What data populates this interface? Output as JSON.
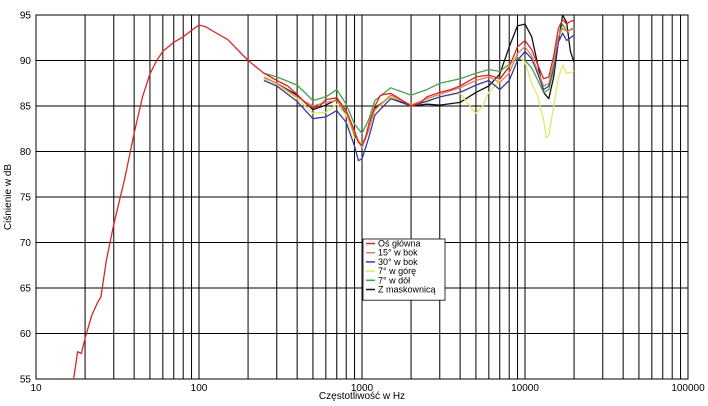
{
  "chart_data": {
    "type": "line",
    "xlabel": "Częstotliwość w Hz",
    "ylabel": "Ciśnienie w dB",
    "xscale": "log",
    "xlim": [
      10,
      100000
    ],
    "ylim": [
      55,
      95
    ],
    "x_ticks": [
      10,
      100,
      1000,
      10000,
      100000
    ],
    "x_tick_labels": [
      "10",
      "100",
      "1000",
      "10000",
      "100000"
    ],
    "y_ticks": [
      55,
      60,
      65,
      70,
      75,
      80,
      85,
      90,
      95
    ],
    "y_tick_labels": [
      "55",
      "60",
      "65",
      "70",
      "75",
      "80",
      "85",
      "90",
      "95"
    ],
    "grid": "on",
    "legend_position": "center-bottom",
    "series": [
      {
        "name": "Oś główna",
        "color": "#d62828",
        "points": [
          [
            17,
            55
          ],
          [
            18,
            58
          ],
          [
            19,
            57.8
          ],
          [
            20,
            59.5
          ],
          [
            22,
            62
          ],
          [
            24,
            63.5
          ],
          [
            25,
            64
          ],
          [
            27,
            68
          ],
          [
            30,
            72
          ],
          [
            35,
            77
          ],
          [
            40,
            82
          ],
          [
            45,
            86
          ],
          [
            50,
            88.5
          ],
          [
            55,
            90
          ],
          [
            60,
            91
          ],
          [
            70,
            92
          ],
          [
            80,
            92.6
          ],
          [
            90,
            93.3
          ],
          [
            100,
            93.9
          ],
          [
            110,
            93.7
          ],
          [
            120,
            93.3
          ],
          [
            150,
            92.3
          ],
          [
            200,
            90
          ],
          [
            250,
            88.6
          ],
          [
            300,
            87.8
          ],
          [
            350,
            87.2
          ],
          [
            400,
            86.3
          ],
          [
            450,
            85.3
          ],
          [
            500,
            84.8
          ],
          [
            550,
            85
          ],
          [
            600,
            85.7
          ],
          [
            700,
            85.9
          ],
          [
            800,
            84.5
          ],
          [
            900,
            82.3
          ],
          [
            950,
            81
          ],
          [
            1000,
            80.7
          ],
          [
            1050,
            81.5
          ],
          [
            1100,
            83
          ],
          [
            1200,
            85
          ],
          [
            1300,
            86.2
          ],
          [
            1500,
            86.4
          ],
          [
            1700,
            85.8
          ],
          [
            2000,
            85
          ],
          [
            2300,
            85.4
          ],
          [
            2500,
            86
          ],
          [
            3000,
            86.5
          ],
          [
            3500,
            86.8
          ],
          [
            4000,
            87.2
          ],
          [
            5000,
            88.2
          ],
          [
            6000,
            88.4
          ],
          [
            7000,
            88
          ],
          [
            8000,
            89.3
          ],
          [
            9000,
            91.5
          ],
          [
            10000,
            92.2
          ],
          [
            11000,
            91.2
          ],
          [
            12000,
            89.5
          ],
          [
            13000,
            88
          ],
          [
            14000,
            88.2
          ],
          [
            15000,
            90.5
          ],
          [
            16000,
            93.5
          ],
          [
            17000,
            94.5
          ],
          [
            18000,
            94
          ],
          [
            19000,
            94.3
          ],
          [
            20000,
            94.4
          ]
        ]
      },
      {
        "name": "15° w bok",
        "color": "#e0805a",
        "points": [
          [
            250,
            88.2
          ],
          [
            300,
            87.5
          ],
          [
            400,
            86
          ],
          [
            500,
            85
          ],
          [
            600,
            85.4
          ],
          [
            700,
            85.6
          ],
          [
            800,
            84.3
          ],
          [
            900,
            82
          ],
          [
            1000,
            80.5
          ],
          [
            1100,
            82.5
          ],
          [
            1200,
            84.6
          ],
          [
            1500,
            86.2
          ],
          [
            2000,
            85.1
          ],
          [
            2500,
            85.8
          ],
          [
            3000,
            86.3
          ],
          [
            4000,
            87
          ],
          [
            5000,
            87.8
          ],
          [
            6000,
            88.2
          ],
          [
            7000,
            87.6
          ],
          [
            8000,
            88.6
          ],
          [
            9000,
            90.8
          ],
          [
            10000,
            91.5
          ],
          [
            11000,
            90.5
          ],
          [
            12000,
            88.8
          ],
          [
            13000,
            87.2
          ],
          [
            14000,
            87.5
          ],
          [
            15000,
            89.8
          ],
          [
            16000,
            92.6
          ],
          [
            17000,
            93.5
          ],
          [
            18000,
            93.2
          ],
          [
            20000,
            93.5
          ]
        ]
      },
      {
        "name": "30° w bok",
        "color": "#3a3aa0",
        "points": [
          [
            250,
            87.8
          ],
          [
            300,
            87.2
          ],
          [
            400,
            85.5
          ],
          [
            500,
            83.6
          ],
          [
            600,
            83.8
          ],
          [
            700,
            84.5
          ],
          [
            800,
            83.2
          ],
          [
            900,
            80.6
          ],
          [
            950,
            79
          ],
          [
            1000,
            79.2
          ],
          [
            1100,
            81.5
          ],
          [
            1200,
            84
          ],
          [
            1500,
            85.8
          ],
          [
            2000,
            85
          ],
          [
            2500,
            85.5
          ],
          [
            3000,
            86
          ],
          [
            4000,
            86.5
          ],
          [
            5000,
            87.3
          ],
          [
            6000,
            87.8
          ],
          [
            7000,
            86.8
          ],
          [
            8000,
            87.8
          ],
          [
            9000,
            90
          ],
          [
            10000,
            91
          ],
          [
            11000,
            90.2
          ],
          [
            12000,
            88.5
          ],
          [
            13000,
            86.8
          ],
          [
            14000,
            87.2
          ],
          [
            15000,
            89.5
          ],
          [
            16000,
            92
          ],
          [
            17000,
            93
          ],
          [
            18000,
            92.2
          ],
          [
            19000,
            92.5
          ],
          [
            20000,
            92.8
          ]
        ]
      },
      {
        "name": "7° w górę",
        "color": "#e5e56a",
        "points": [
          [
            250,
            88
          ],
          [
            300,
            87.4
          ],
          [
            400,
            85.8
          ],
          [
            500,
            84.2
          ],
          [
            600,
            84.3
          ],
          [
            700,
            85.2
          ],
          [
            800,
            84
          ],
          [
            900,
            81.5
          ],
          [
            1000,
            80.8
          ],
          [
            1100,
            82.5
          ],
          [
            1200,
            84.5
          ],
          [
            1500,
            86
          ],
          [
            2000,
            85.2
          ],
          [
            2500,
            85.6
          ],
          [
            3000,
            86
          ],
          [
            3500,
            86.2
          ],
          [
            4000,
            86.4
          ],
          [
            4500,
            85.2
          ],
          [
            5000,
            84.2
          ],
          [
            5500,
            85
          ],
          [
            6000,
            86.5
          ],
          [
            7000,
            87.8
          ],
          [
            8000,
            89.5
          ],
          [
            9000,
            90.5
          ],
          [
            10000,
            89.8
          ],
          [
            11000,
            87.5
          ],
          [
            12000,
            86
          ],
          [
            13000,
            83.5
          ],
          [
            13500,
            81.5
          ],
          [
            14000,
            81.8
          ],
          [
            15000,
            85
          ],
          [
            16000,
            88
          ],
          [
            17000,
            89.5
          ],
          [
            18000,
            88.6
          ],
          [
            20000,
            88.8
          ]
        ]
      },
      {
        "name": "7° w dół",
        "color": "#4aa04a",
        "points": [
          [
            250,
            88.6
          ],
          [
            300,
            88.2
          ],
          [
            400,
            87.3
          ],
          [
            500,
            85.6
          ],
          [
            600,
            86
          ],
          [
            700,
            86.8
          ],
          [
            800,
            85.2
          ],
          [
            900,
            83
          ],
          [
            1000,
            82
          ],
          [
            1100,
            83.5
          ],
          [
            1200,
            85.6
          ],
          [
            1500,
            87
          ],
          [
            2000,
            86.2
          ],
          [
            2500,
            86.8
          ],
          [
            3000,
            87.5
          ],
          [
            4000,
            88
          ],
          [
            5000,
            88.6
          ],
          [
            6000,
            89
          ],
          [
            7000,
            88.8
          ],
          [
            8000,
            89.6
          ],
          [
            9000,
            90.2
          ],
          [
            10000,
            90
          ],
          [
            11000,
            89.2
          ],
          [
            12000,
            87.8
          ],
          [
            13000,
            86.5
          ],
          [
            14000,
            86.8
          ],
          [
            15000,
            89
          ],
          [
            16000,
            92.5
          ],
          [
            17000,
            94
          ],
          [
            18000,
            93.2
          ],
          [
            20000,
            93.6
          ]
        ]
      },
      {
        "name": "Z maskownicą",
        "color": "#111111",
        "points": [
          [
            250,
            88
          ],
          [
            300,
            87.5
          ],
          [
            400,
            86.2
          ],
          [
            500,
            84.6
          ],
          [
            600,
            85.1
          ],
          [
            700,
            85.7
          ],
          [
            800,
            84.1
          ],
          [
            900,
            81.7
          ],
          [
            1000,
            80.5
          ],
          [
            1100,
            82.4
          ],
          [
            1200,
            84.8
          ],
          [
            1500,
            86
          ],
          [
            2000,
            85
          ],
          [
            2500,
            85.2
          ],
          [
            3000,
            85.1
          ],
          [
            4000,
            85.4
          ],
          [
            5000,
            86.5
          ],
          [
            6000,
            87.2
          ],
          [
            7000,
            88.5
          ],
          [
            8000,
            91.5
          ],
          [
            9000,
            93.8
          ],
          [
            10000,
            94
          ],
          [
            11000,
            92.6
          ],
          [
            12000,
            89.5
          ],
          [
            13000,
            86.5
          ],
          [
            14000,
            85.8
          ],
          [
            15000,
            88.2
          ],
          [
            16000,
            92
          ],
          [
            17000,
            95
          ],
          [
            18000,
            94.2
          ],
          [
            19000,
            91
          ],
          [
            20000,
            89.8
          ]
        ]
      }
    ]
  }
}
